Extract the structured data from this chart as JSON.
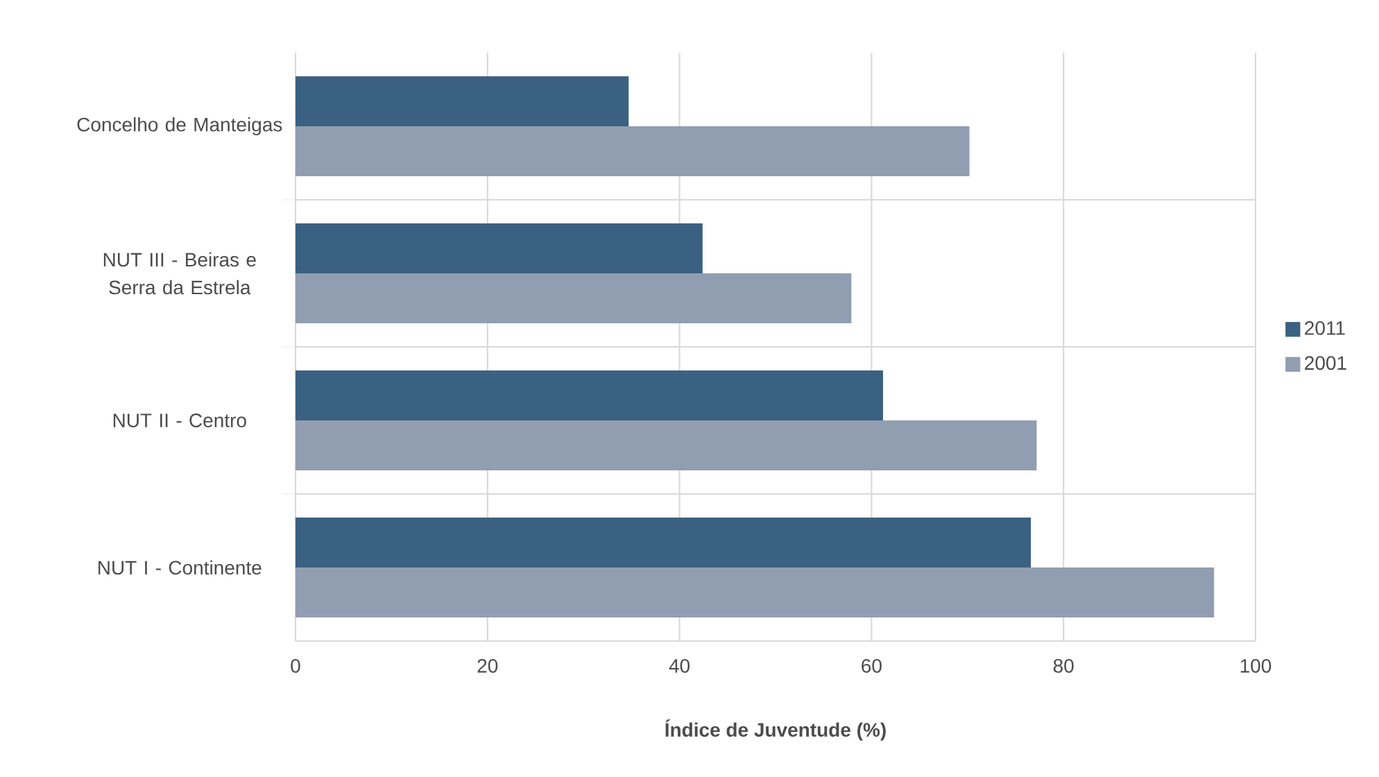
{
  "chart_data": {
    "type": "bar",
    "orientation": "horizontal",
    "xlabel": "**Índice de Juventude (%)**",
    "categories": [
      "Concelho de Manteigas",
      "NUT III - Beiras e Serra da Estrela",
      "NUT II - Centro",
      "NUT I - Continente"
    ],
    "series": [
      {
        "name": "2011",
        "color": "#3b6182",
        "values": [
          34.7,
          42.4,
          61.2,
          76.6
        ]
      },
      {
        "name": "2001",
        "color": "#919eb1",
        "values": [
          70.2,
          57.9,
          77.2,
          95.7
        ]
      }
    ],
    "xlim": [
      0,
      100
    ],
    "xticks": [
      0,
      20,
      40,
      60,
      80,
      100
    ],
    "grid": true,
    "legend": "right"
  }
}
